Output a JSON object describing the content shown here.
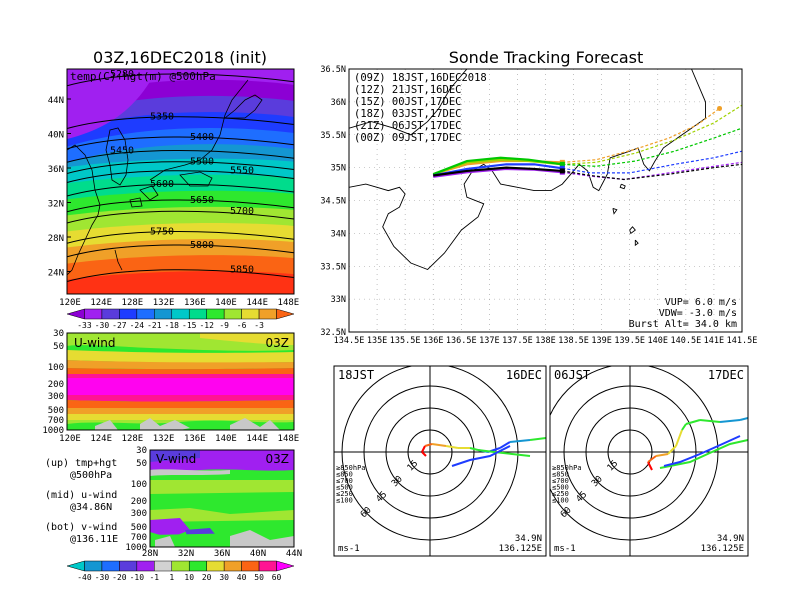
{
  "left_panel": {
    "title": "03Z,16DEC2018 (init)",
    "overlay_label": "temp(C)+hgt(m) @500hPa",
    "lat_ticks": [
      "44N",
      "40N",
      "36N",
      "32N",
      "28N",
      "24N"
    ],
    "lon_ticks": [
      "120E",
      "124E",
      "128E",
      "132E",
      "136E",
      "140E",
      "144E",
      "148E"
    ],
    "contours": [
      {
        "label": "5280",
        "y": 0.03
      },
      {
        "label": "5350",
        "y": 0.22
      },
      {
        "label": "5400",
        "y": 0.31
      },
      {
        "label": "5450",
        "y": 0.37
      },
      {
        "label": "5500",
        "y": 0.42
      },
      {
        "label": "5550",
        "y": 0.46
      },
      {
        "label": "5600",
        "y": 0.52
      },
      {
        "label": "5650",
        "y": 0.59
      },
      {
        "label": "5700",
        "y": 0.64
      },
      {
        "label": "5750",
        "y": 0.73
      },
      {
        "label": "5800",
        "y": 0.79
      },
      {
        "label": "5850",
        "y": 0.9
      }
    ],
    "colorbar": {
      "labels": [
        "-33",
        "-30",
        "-27",
        "-24",
        "-21",
        "-18",
        "-15",
        "-12",
        "-9",
        "-6",
        "-3"
      ],
      "colors": [
        "#8c00d4",
        "#a020f0",
        "#5a3cdc",
        "#1e3cff",
        "#1e6eff",
        "#1496d2",
        "#00c8c8",
        "#00dc8c",
        "#2ee82e",
        "#a0e632",
        "#e6dc32",
        "#f0a028",
        "#fa6414"
      ]
    }
  },
  "uwind": {
    "label": "U-wind",
    "time": "03Z",
    "y_ticks": [
      "30",
      "50",
      "100",
      "200",
      "300",
      "500",
      "700",
      "1000"
    ],
    "x_ticks": [
      "120E",
      "124E",
      "128E",
      "132E",
      "136E",
      "140E",
      "144E",
      "148E"
    ]
  },
  "vwind": {
    "label": "V-wind",
    "time": "03Z",
    "y_ticks": [
      "30",
      "50",
      "100",
      "200",
      "300",
      "500",
      "700",
      "1000"
    ],
    "x_ticks": [
      "28N",
      "32N",
      "36N",
      "40N",
      "44N"
    ],
    "colorbar": {
      "labels": [
        "-40",
        "-30",
        "-20",
        "-10",
        "-1",
        "1",
        "10",
        "20",
        "30",
        "40",
        "50",
        "60"
      ],
      "colors": [
        "#00c8c8",
        "#1496d2",
        "#1e6eff",
        "#5a3cdc",
        "#a020f0",
        "#d2d2d2",
        "#a0e632",
        "#2ee82e",
        "#e6dc32",
        "#f0a028",
        "#fa6414",
        "#ff1493",
        "#ff00ff"
      ]
    }
  },
  "legend_notes": [
    {
      "head": "(up) tmp+hgt",
      "sub": "@500hPa"
    },
    {
      "head": "(mid) u-wind",
      "sub": "@34.86N"
    },
    {
      "head": "(bot) v-wind",
      "sub": "@136.11E"
    }
  ],
  "track_panel": {
    "title": "Sonde Tracking Forecast",
    "lat_ticks": [
      "36.5N",
      "36N",
      "35.5N",
      "35N",
      "34.5N",
      "34N",
      "33.5N",
      "33N",
      "32.5N"
    ],
    "lon_ticks": [
      "134.5E",
      "135E",
      "135.5E",
      "136E",
      "136.5E",
      "137E",
      "137.5E",
      "138E",
      "138.5E",
      "139E",
      "139.5E",
      "140E",
      "140.5E",
      "141E",
      "141.5E"
    ],
    "legend": [
      {
        "label": "(09Z)  18JST,16DEC2018",
        "color": "#000000"
      },
      {
        "label": "(12Z)  21JST,16DEC",
        "color": "#a020f0"
      },
      {
        "label": "(15Z)  00JST,17DEC",
        "color": "#1e3cff"
      },
      {
        "label": "(18Z)  03JST,17DEC",
        "color": "#00c800"
      },
      {
        "label": "(21Z)  06JST,17DEC",
        "color": "#a0d200"
      },
      {
        "label": "(00Z)  09JST,17DEC",
        "color": "#f0a028"
      }
    ],
    "params": [
      "VUP=  6.0 m/s",
      "VDW= -3.0 m/s",
      "Burst Alt= 34.0 km"
    ]
  },
  "hodographs": [
    {
      "left": "18JST",
      "right": "16DEC",
      "units": "ms-1",
      "lat": "34.9N",
      "lon": "136.125E",
      "rings": [
        "15",
        "30",
        "45",
        "60"
      ],
      "levels": [
        {
          "t": "≥850hPa",
          "c": "#ff0000"
        },
        {
          "t": "≤850",
          "c": "#f0a028"
        },
        {
          "t": "≤700",
          "c": "#e6dc32"
        },
        {
          "t": "≤500",
          "c": "#2ee82e"
        },
        {
          "t": "≤250",
          "c": "#1496d2"
        },
        {
          "t": "≤100",
          "c": "#1e3cff"
        }
      ]
    },
    {
      "left": "06JST",
      "right": "17DEC",
      "units": "ms-1",
      "lat": "34.9N",
      "lon": "136.125E",
      "rings": [
        "15",
        "30",
        "45",
        "60"
      ],
      "levels": [
        {
          "t": "≥850hPa",
          "c": "#ff0000"
        },
        {
          "t": "≤850",
          "c": "#f0a028"
        },
        {
          "t": "≤700",
          "c": "#e6dc32"
        },
        {
          "t": "≤500",
          "c": "#2ee82e"
        },
        {
          "t": "≤250",
          "c": "#1496d2"
        },
        {
          "t": "≤100",
          "c": "#1e3cff"
        }
      ]
    }
  ],
  "chart_data": {
    "type": "line",
    "title": "Sonde Tracking Forecast",
    "xlabel": "",
    "ylabel": "",
    "xlim": [
      134.5,
      141.5
    ],
    "ylim": [
      32.5,
      36.5
    ],
    "series": [
      {
        "name": "(09Z)  18JST,16DEC2018",
        "x": [
          136.0,
          136.6,
          137.3,
          137.8,
          138.3,
          138.8,
          139.4,
          140.2,
          141.0,
          141.5
        ],
        "y": [
          34.88,
          34.95,
          35.0,
          34.98,
          34.95,
          34.88,
          34.82,
          34.9,
          35.0,
          35.05
        ]
      },
      {
        "name": "(12Z)  21JST,16DEC",
        "x": [
          136.0,
          136.6,
          137.3,
          137.8,
          138.3,
          138.8,
          139.4,
          140.2,
          141.0,
          141.5
        ],
        "y": [
          34.86,
          34.93,
          34.98,
          34.97,
          34.93,
          34.87,
          34.82,
          34.92,
          35.02,
          35.08
        ]
      },
      {
        "name": "(15Z)  00JST,17DEC",
        "x": [
          136.0,
          136.6,
          137.3,
          137.8,
          138.3,
          138.8,
          139.5,
          140.3,
          141.0,
          141.5
        ],
        "y": [
          34.88,
          34.98,
          35.05,
          35.05,
          34.99,
          34.92,
          34.92,
          35.05,
          35.15,
          35.25
        ]
      },
      {
        "name": "(18Z)  03JST,17DEC",
        "x": [
          136.0,
          136.6,
          137.2,
          137.7,
          138.3,
          138.9,
          139.6,
          140.3,
          141.0,
          141.5
        ],
        "y": [
          34.9,
          35.1,
          35.15,
          35.12,
          35.05,
          35.02,
          35.1,
          35.25,
          35.45,
          35.6
        ]
      },
      {
        "name": "(21Z)  06JST,17DEC",
        "x": [
          136.0,
          136.6,
          137.2,
          137.7,
          138.3,
          138.9,
          139.6,
          140.3,
          141.0,
          141.5
        ],
        "y": [
          34.9,
          35.08,
          35.12,
          35.1,
          35.05,
          35.08,
          35.22,
          35.42,
          35.68,
          35.95
        ]
      },
      {
        "name": "(00Z)  09JST,17DEC",
        "x": [
          136.0,
          136.6,
          137.2,
          137.7,
          138.3,
          138.9,
          139.6,
          140.2,
          140.7,
          141.1
        ],
        "y": [
          34.9,
          35.05,
          35.1,
          35.1,
          35.08,
          35.12,
          35.28,
          35.45,
          35.65,
          35.9
        ]
      }
    ]
  }
}
